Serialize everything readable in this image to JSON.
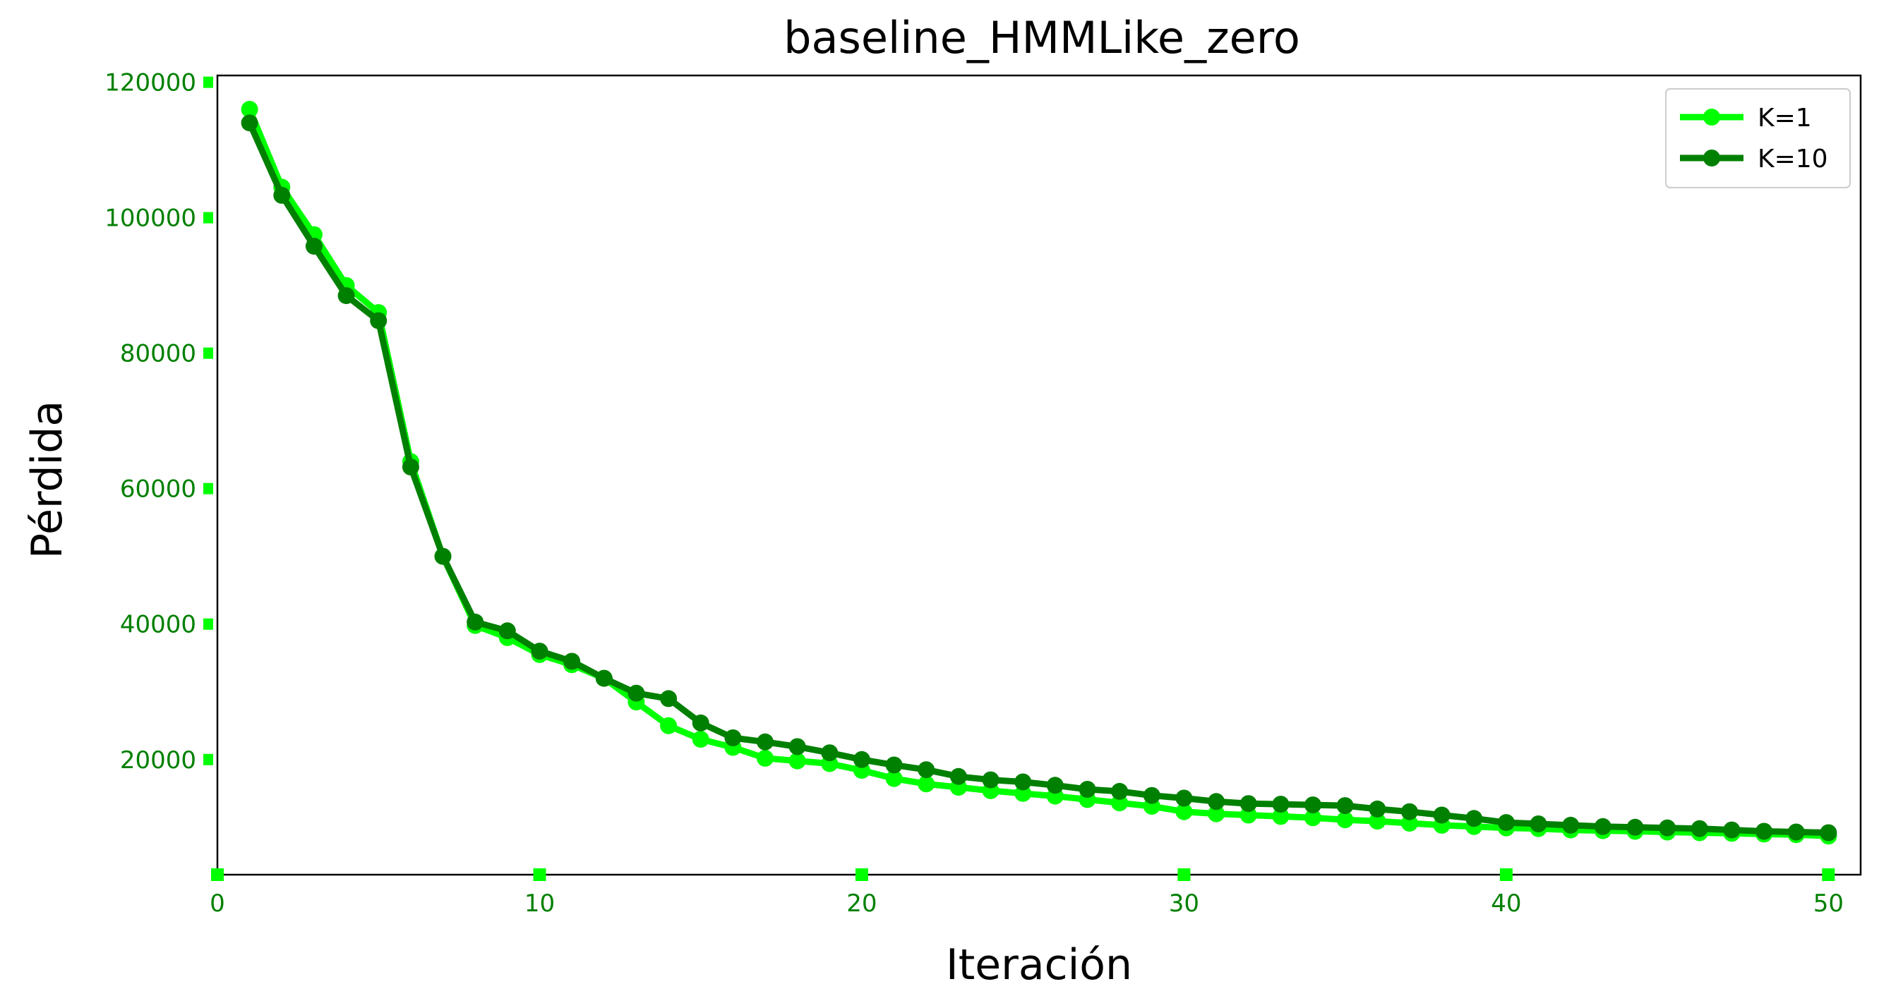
{
  "chart_data": {
    "type": "line",
    "title": "baseline_HMMLike_zero",
    "xlabel": "Iteración",
    "ylabel": "Pérdida",
    "xlim": [
      0,
      51
    ],
    "ylim": [
      3000,
      121000
    ],
    "xticks": [
      0,
      10,
      20,
      30,
      40,
      50
    ],
    "yticks": [
      20000,
      40000,
      60000,
      80000,
      100000,
      120000
    ],
    "xtick_labels": [
      "0",
      "10",
      "20",
      "30",
      "40",
      "50"
    ],
    "ytick_labels": [
      "20000",
      "40000",
      "60000",
      "80000",
      "100000",
      "120000"
    ],
    "grid": false,
    "legend_position": "top-right",
    "tick_color": "#00ff00",
    "tick_label_color": "#008000",
    "x": [
      1,
      2,
      3,
      4,
      5,
      6,
      7,
      8,
      9,
      10,
      11,
      12,
      13,
      14,
      15,
      16,
      17,
      18,
      19,
      20,
      21,
      22,
      23,
      24,
      25,
      26,
      27,
      28,
      29,
      30,
      31,
      32,
      33,
      34,
      35,
      36,
      37,
      38,
      39,
      40,
      41,
      42,
      43,
      44,
      45,
      46,
      47,
      48,
      49,
      50
    ],
    "series": [
      {
        "name": "K=1",
        "color": "#00ff00",
        "values": [
          116000,
          104500,
          97500,
          90000,
          86000,
          64000,
          50000,
          39800,
          38000,
          35500,
          34000,
          32000,
          28500,
          25000,
          23000,
          21800,
          20200,
          19800,
          19400,
          18400,
          17200,
          16400,
          15900,
          15400,
          15000,
          14600,
          14100,
          13600,
          13100,
          12300,
          12000,
          11800,
          11600,
          11400,
          11100,
          10900,
          10600,
          10300,
          10100,
          9900,
          9800,
          9600,
          9500,
          9400,
          9300,
          9200,
          9100,
          9000,
          8900,
          8700
        ]
      },
      {
        "name": "K=10",
        "color": "#008000",
        "values": [
          114000,
          103300,
          95800,
          88500,
          84800,
          63200,
          50000,
          40300,
          39000,
          36000,
          34500,
          32000,
          29800,
          29000,
          25400,
          23200,
          22600,
          21900,
          21000,
          20000,
          19200,
          18500,
          17500,
          17000,
          16700,
          16200,
          15600,
          15300,
          14700,
          14300,
          13800,
          13500,
          13400,
          13300,
          13200,
          12700,
          12300,
          11800,
          11300,
          10700,
          10500,
          10300,
          10100,
          10000,
          9900,
          9800,
          9600,
          9400,
          9300,
          9200
        ]
      }
    ]
  }
}
